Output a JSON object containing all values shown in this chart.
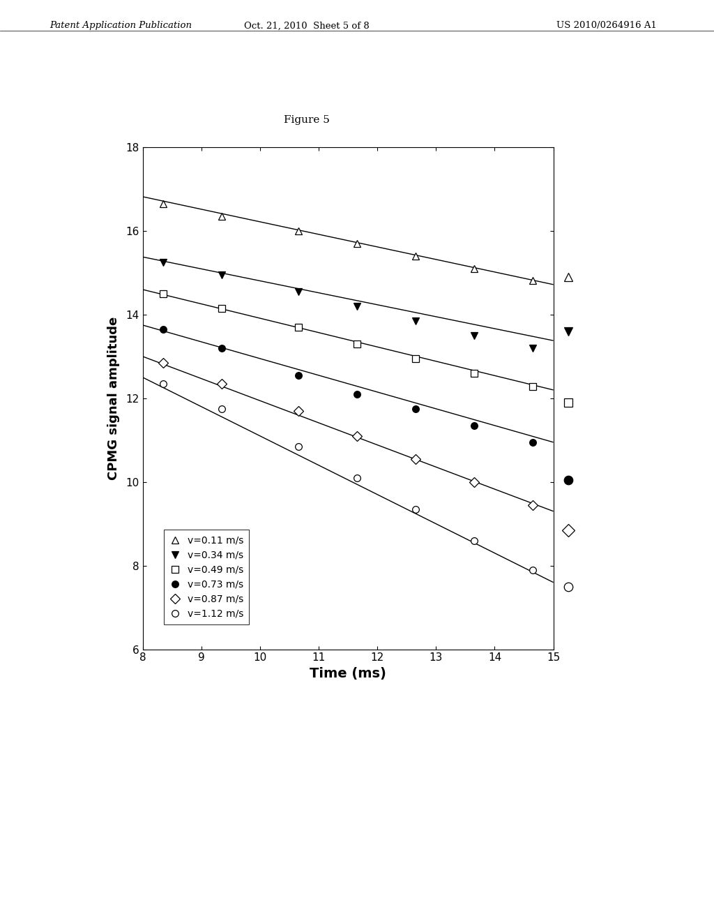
{
  "title": "Figure 5",
  "xlabel": "Time (ms)",
  "ylabel": "CPMG signal amplitude",
  "xlim": [
    8,
    15
  ],
  "ylim": [
    6,
    18
  ],
  "xticks": [
    8,
    9,
    10,
    11,
    12,
    13,
    14,
    15
  ],
  "yticks": [
    6,
    8,
    10,
    12,
    14,
    16,
    18
  ],
  "series": [
    {
      "label": "v=0.11 m/s",
      "marker": "triangle_up",
      "filled": false,
      "x_data": [
        8.35,
        9.35,
        10.65,
        11.65,
        12.65,
        13.65,
        14.65
      ],
      "y_data": [
        16.65,
        16.35,
        16.0,
        15.7,
        15.4,
        15.1,
        14.82
      ],
      "line_x": [
        8.0,
        15.0
      ],
      "line_y": [
        16.82,
        14.72
      ],
      "outside_y": 14.9
    },
    {
      "label": "v=0.34 m/s",
      "marker": "triangle_down",
      "filled": true,
      "x_data": [
        8.35,
        9.35,
        10.65,
        11.65,
        12.65,
        13.65,
        14.65
      ],
      "y_data": [
        15.25,
        14.95,
        14.55,
        14.2,
        13.85,
        13.5,
        13.2
      ],
      "line_x": [
        8.0,
        15.0
      ],
      "line_y": [
        15.38,
        13.38
      ],
      "outside_y": 13.6
    },
    {
      "label": "v=0.49 m/s",
      "marker": "square",
      "filled": false,
      "x_data": [
        8.35,
        9.35,
        10.65,
        11.65,
        12.65,
        13.65,
        14.65
      ],
      "y_data": [
        14.5,
        14.15,
        13.7,
        13.3,
        12.95,
        12.6,
        12.28
      ],
      "line_x": [
        8.0,
        15.0
      ],
      "line_y": [
        14.6,
        12.2
      ],
      "outside_y": 11.9
    },
    {
      "label": "v=0.73 m/s",
      "marker": "circle",
      "filled": true,
      "x_data": [
        8.35,
        9.35,
        10.65,
        11.65,
        12.65,
        13.65,
        14.65
      ],
      "y_data": [
        13.65,
        13.2,
        12.55,
        12.1,
        11.75,
        11.35,
        10.95
      ],
      "line_x": [
        8.0,
        15.0
      ],
      "line_y": [
        13.75,
        10.95
      ],
      "outside_y": 10.05
    },
    {
      "label": "v=0.87 m/s",
      "marker": "diamond",
      "filled": false,
      "x_data": [
        8.35,
        9.35,
        10.65,
        11.65,
        12.65,
        13.65,
        14.65
      ],
      "y_data": [
        12.85,
        12.35,
        11.7,
        11.1,
        10.55,
        10.0,
        9.45
      ],
      "line_x": [
        8.0,
        15.0
      ],
      "line_y": [
        13.0,
        9.3
      ],
      "outside_y": 8.85
    },
    {
      "label": "v=1.12 m/s",
      "marker": "circle",
      "filled": false,
      "x_data": [
        8.35,
        9.35,
        10.65,
        11.65,
        12.65,
        13.65,
        14.65
      ],
      "y_data": [
        12.35,
        11.75,
        10.85,
        10.1,
        9.35,
        8.6,
        7.9
      ],
      "line_x": [
        8.0,
        15.0
      ],
      "line_y": [
        12.5,
        7.6
      ],
      "outside_y": 7.5
    }
  ],
  "header_left": "Patent Application Publication",
  "header_center": "Oct. 21, 2010  Sheet 5 of 8",
  "header_right": "US 2010/0264916 A1",
  "figure_label": "Figure 5",
  "background_color": "#ffffff",
  "marker_size": 7,
  "line_width": 1.0
}
